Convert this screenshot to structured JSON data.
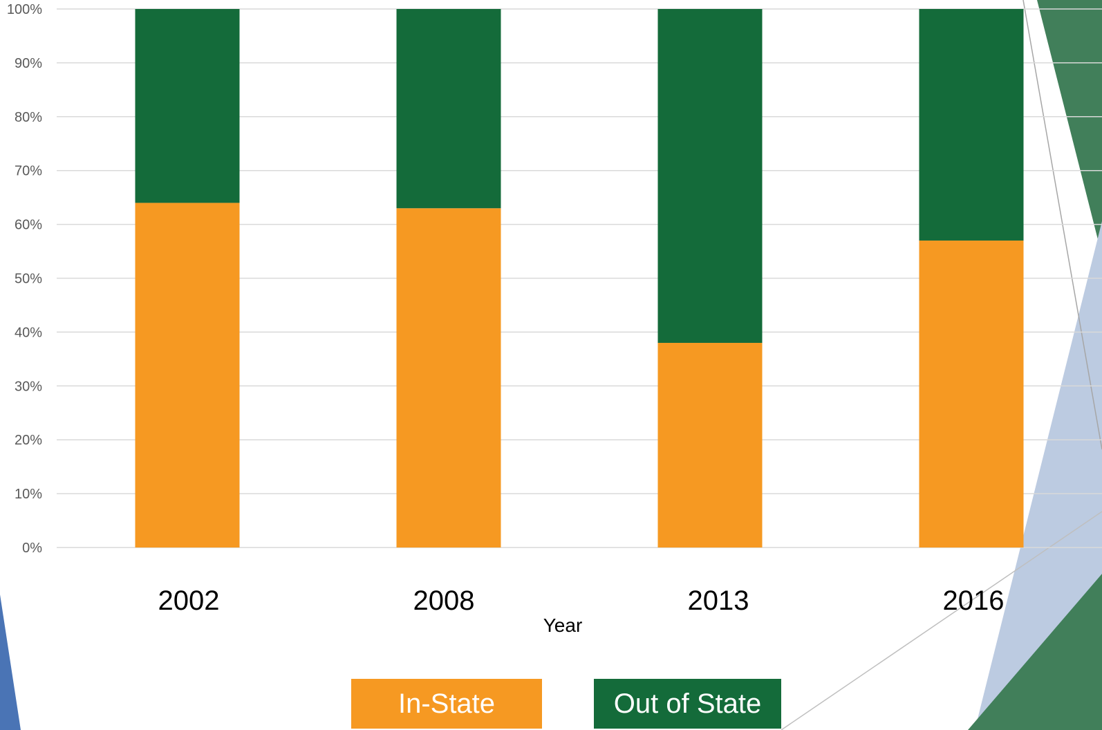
{
  "chart_data": {
    "type": "bar",
    "stacked": true,
    "normalized": true,
    "categories": [
      "2002",
      "2008",
      "2013",
      "2016"
    ],
    "series": [
      {
        "name": "In-State",
        "color": "#f69922",
        "values": [
          64,
          63,
          38,
          57
        ]
      },
      {
        "name": "Out of State",
        "color": "#146b3a",
        "values": [
          36,
          37,
          62,
          43
        ]
      }
    ],
    "xlabel": "Year",
    "ylabel": "",
    "ylim": [
      0,
      100
    ],
    "yticks": [
      "0%",
      "10%",
      "20%",
      "30%",
      "40%",
      "50%",
      "60%",
      "70%",
      "80%",
      "90%",
      "100%"
    ],
    "grid": true,
    "legend_position": "bottom"
  },
  "legend": {
    "in_state": "In-State",
    "out_of_state": "Out of State"
  },
  "theme": {
    "accent_green": "#417f5a",
    "accent_blue": "#4a74b5",
    "accent_light_blue": "#bccbe1",
    "grid_color": "#d9d9d9"
  }
}
